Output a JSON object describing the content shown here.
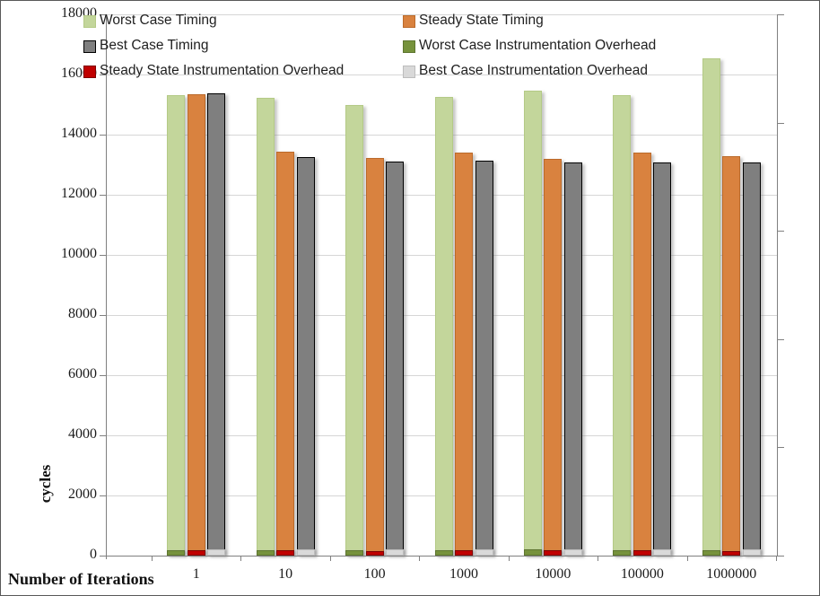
{
  "chart_data": {
    "type": "bar",
    "title": "",
    "xlabel": "Number of Iterations",
    "ylabel": "cycles",
    "ylim": [
      0,
      18000
    ],
    "ytick_step": 2000,
    "yticks": [
      0,
      2000,
      4000,
      6000,
      8000,
      10000,
      12000,
      14000,
      16000,
      18000
    ],
    "grid": true,
    "legend_position": "top-inside, two columns",
    "categories": [
      "1",
      "10",
      "100",
      "1000",
      "10000",
      "100000",
      "1000000"
    ],
    "series": [
      {
        "name": "Worst Case Timing",
        "color": "#c3d69b",
        "border_color": "#b4ca86",
        "values": [
          15320,
          15210,
          15000,
          15240,
          15450,
          15300,
          16550
        ]
      },
      {
        "name": "Steady State Timing",
        "color": "#d9823f",
        "border_color": "#bb6a2a",
        "values": [
          15330,
          13420,
          13230,
          13390,
          13180,
          13400,
          13290
        ]
      },
      {
        "name": "Best Case Timing",
        "color": "#7f7f7f",
        "border_color": "#000000",
        "values": [
          15360,
          13240,
          13100,
          13140,
          13080,
          13060,
          13060
        ]
      },
      {
        "name": "Worst Case Instrumentation Overhead",
        "color": "#76923c",
        "border_color": "#5e7530",
        "values": [
          190,
          190,
          185,
          190,
          195,
          190,
          185
        ]
      },
      {
        "name": "Steady State Instrumentation Overhead",
        "color": "#c00000",
        "border_color": "#7f0000",
        "values": [
          170,
          175,
          160,
          170,
          175,
          170,
          160
        ]
      },
      {
        "name": "Best Case Instrumentation Overhead",
        "color": "#d9d9d9",
        "border_color": "#bdbdbd",
        "values": [
          205,
          205,
          195,
          200,
          205,
          205,
          200
        ]
      }
    ],
    "legend_columns": {
      "left": [
        "Worst Case Timing",
        "Best Case Timing",
        "Steady State Instrumentation Overhead"
      ],
      "right": [
        "Steady State Timing",
        "Worst Case Instrumentation Overhead",
        "Best Case Instrumentation Overhead"
      ]
    }
  }
}
